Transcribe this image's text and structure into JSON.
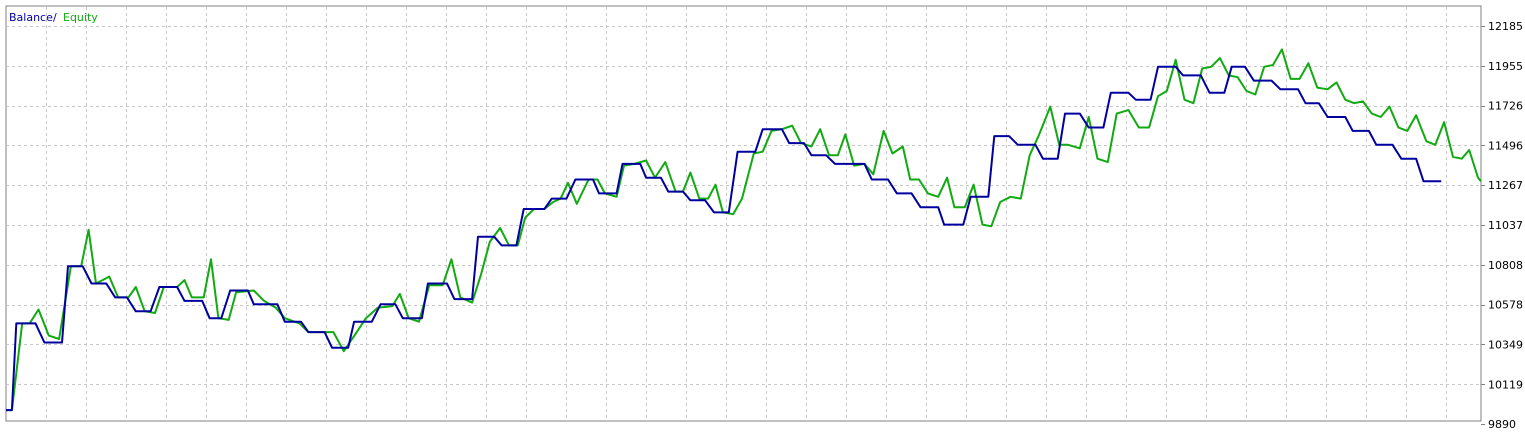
{
  "chart_data": {
    "type": "line",
    "legend": {
      "placement": "top-left",
      "separator": "/"
    },
    "series": [
      {
        "name": "Balance",
        "color": "#0000a0"
      },
      {
        "name": "Equity",
        "color": "#11aa11"
      }
    ],
    "y_ticks": [
      "12185",
      "11955",
      "11726",
      "11496",
      "11267",
      "11037",
      "10808",
      "10578",
      "10349",
      "10119",
      "9890"
    ],
    "ylim": [
      9890,
      12185
    ],
    "x_range": [
      0,
      100
    ],
    "grid": true,
    "balance_points": [
      [
        0.0,
        9970
      ],
      [
        0.4,
        9970
      ],
      [
        0.7,
        10470
      ],
      [
        2.0,
        10470
      ],
      [
        2.6,
        10360
      ],
      [
        3.8,
        10360
      ],
      [
        4.2,
        10800
      ],
      [
        5.2,
        10800
      ],
      [
        5.8,
        10700
      ],
      [
        6.8,
        10700
      ],
      [
        7.4,
        10620
      ],
      [
        8.2,
        10620
      ],
      [
        8.8,
        10540
      ],
      [
        9.8,
        10540
      ],
      [
        10.4,
        10680
      ],
      [
        11.6,
        10680
      ],
      [
        12.1,
        10600
      ],
      [
        13.3,
        10600
      ],
      [
        13.8,
        10500
      ],
      [
        14.6,
        10500
      ],
      [
        15.2,
        10660
      ],
      [
        16.4,
        10660
      ],
      [
        16.8,
        10580
      ],
      [
        18.4,
        10580
      ],
      [
        18.9,
        10480
      ],
      [
        20.0,
        10480
      ],
      [
        20.5,
        10420
      ],
      [
        21.6,
        10420
      ],
      [
        22.1,
        10330
      ],
      [
        23.2,
        10330
      ],
      [
        23.6,
        10480
      ],
      [
        24.8,
        10480
      ],
      [
        25.4,
        10580
      ],
      [
        26.4,
        10580
      ],
      [
        26.9,
        10500
      ],
      [
        28.2,
        10500
      ],
      [
        28.6,
        10700
      ],
      [
        29.9,
        10700
      ],
      [
        30.4,
        10610
      ],
      [
        31.6,
        10610
      ],
      [
        32.0,
        10970
      ],
      [
        33.1,
        10970
      ],
      [
        33.6,
        10920
      ],
      [
        34.6,
        10920
      ],
      [
        35.1,
        11130
      ],
      [
        36.5,
        11130
      ],
      [
        37.0,
        11190
      ],
      [
        38.0,
        11190
      ],
      [
        38.6,
        11300
      ],
      [
        39.8,
        11300
      ],
      [
        40.2,
        11220
      ],
      [
        41.4,
        11220
      ],
      [
        41.8,
        11390
      ],
      [
        43.0,
        11390
      ],
      [
        43.4,
        11310
      ],
      [
        44.4,
        11310
      ],
      [
        44.9,
        11230
      ],
      [
        45.9,
        11230
      ],
      [
        46.4,
        11180
      ],
      [
        47.4,
        11180
      ],
      [
        48.0,
        11110
      ],
      [
        49.0,
        11110
      ],
      [
        49.6,
        11460
      ],
      [
        50.8,
        11460
      ],
      [
        51.3,
        11590
      ],
      [
        52.6,
        11590
      ],
      [
        53.1,
        11510
      ],
      [
        54.1,
        11510
      ],
      [
        54.6,
        11440
      ],
      [
        55.6,
        11440
      ],
      [
        56.2,
        11390
      ],
      [
        58.2,
        11390
      ],
      [
        58.7,
        11300
      ],
      [
        59.8,
        11300
      ],
      [
        60.4,
        11220
      ],
      [
        61.4,
        11220
      ],
      [
        62.0,
        11140
      ],
      [
        63.2,
        11140
      ],
      [
        63.6,
        11040
      ],
      [
        64.9,
        11040
      ],
      [
        65.4,
        11200
      ],
      [
        66.6,
        11200
      ],
      [
        67.0,
        11550
      ],
      [
        68.0,
        11550
      ],
      [
        68.6,
        11500
      ],
      [
        69.8,
        11500
      ],
      [
        70.3,
        11420
      ],
      [
        71.3,
        11420
      ],
      [
        71.8,
        11680
      ],
      [
        72.8,
        11680
      ],
      [
        73.4,
        11600
      ],
      [
        74.4,
        11600
      ],
      [
        74.9,
        11800
      ],
      [
        76.1,
        11800
      ],
      [
        76.6,
        11760
      ],
      [
        77.6,
        11760
      ],
      [
        78.1,
        11950
      ],
      [
        79.3,
        11950
      ],
      [
        79.8,
        11900
      ],
      [
        81.0,
        11900
      ],
      [
        81.6,
        11800
      ],
      [
        82.6,
        11800
      ],
      [
        83.1,
        11950
      ],
      [
        84.0,
        11950
      ],
      [
        84.6,
        11870
      ],
      [
        85.8,
        11870
      ],
      [
        86.4,
        11820
      ],
      [
        87.6,
        11820
      ],
      [
        88.1,
        11740
      ],
      [
        89.0,
        11740
      ],
      [
        89.6,
        11660
      ],
      [
        90.8,
        11660
      ],
      [
        91.3,
        11580
      ],
      [
        92.4,
        11580
      ],
      [
        92.9,
        11500
      ],
      [
        94.0,
        11500
      ],
      [
        94.6,
        11420
      ],
      [
        95.6,
        11420
      ],
      [
        96.1,
        11290
      ],
      [
        97.3,
        11290
      ]
    ],
    "equity_points": [
      [
        0.0,
        9970
      ],
      [
        0.4,
        9970
      ],
      [
        1.1,
        10470
      ],
      [
        1.6,
        10470
      ],
      [
        2.2,
        10550
      ],
      [
        2.9,
        10400
      ],
      [
        3.6,
        10380
      ],
      [
        4.4,
        10800
      ],
      [
        5.1,
        10800
      ],
      [
        5.6,
        11010
      ],
      [
        6.1,
        10700
      ],
      [
        7.0,
        10740
      ],
      [
        7.6,
        10620
      ],
      [
        8.3,
        10620
      ],
      [
        8.8,
        10680
      ],
      [
        9.4,
        10540
      ],
      [
        10.1,
        10530
      ],
      [
        10.7,
        10680
      ],
      [
        11.6,
        10680
      ],
      [
        12.1,
        10720
      ],
      [
        12.6,
        10620
      ],
      [
        13.4,
        10620
      ],
      [
        13.9,
        10840
      ],
      [
        14.4,
        10500
      ],
      [
        15.1,
        10490
      ],
      [
        15.6,
        10650
      ],
      [
        16.8,
        10660
      ],
      [
        17.5,
        10600
      ],
      [
        18.3,
        10560
      ],
      [
        18.9,
        10500
      ],
      [
        19.9,
        10470
      ],
      [
        20.5,
        10420
      ],
      [
        21.6,
        10420
      ],
      [
        22.2,
        10420
      ],
      [
        22.9,
        10310
      ],
      [
        23.7,
        10410
      ],
      [
        24.4,
        10500
      ],
      [
        25.2,
        10560
      ],
      [
        26.2,
        10570
      ],
      [
        26.7,
        10640
      ],
      [
        27.3,
        10500
      ],
      [
        28.0,
        10480
      ],
      [
        28.7,
        10690
      ],
      [
        29.6,
        10690
      ],
      [
        30.2,
        10840
      ],
      [
        30.8,
        10620
      ],
      [
        31.6,
        10590
      ],
      [
        32.2,
        10750
      ],
      [
        32.8,
        10940
      ],
      [
        33.5,
        11020
      ],
      [
        34.1,
        10920
      ],
      [
        34.7,
        10920
      ],
      [
        35.2,
        11080
      ],
      [
        35.8,
        11130
      ],
      [
        36.5,
        11130
      ],
      [
        37.1,
        11170
      ],
      [
        37.6,
        11190
      ],
      [
        38.1,
        11280
      ],
      [
        38.7,
        11160
      ],
      [
        39.5,
        11300
      ],
      [
        40.1,
        11300
      ],
      [
        40.6,
        11220
      ],
      [
        41.4,
        11200
      ],
      [
        41.9,
        11380
      ],
      [
        42.6,
        11390
      ],
      [
        43.4,
        11410
      ],
      [
        44.0,
        11310
      ],
      [
        44.7,
        11400
      ],
      [
        45.4,
        11230
      ],
      [
        45.9,
        11230
      ],
      [
        46.4,
        11340
      ],
      [
        47.0,
        11190
      ],
      [
        47.6,
        11190
      ],
      [
        48.1,
        11270
      ],
      [
        48.6,
        11110
      ],
      [
        49.3,
        11100
      ],
      [
        49.9,
        11190
      ],
      [
        50.7,
        11450
      ],
      [
        51.3,
        11460
      ],
      [
        51.9,
        11580
      ],
      [
        52.6,
        11590
      ],
      [
        53.3,
        11610
      ],
      [
        53.9,
        11510
      ],
      [
        54.6,
        11490
      ],
      [
        55.2,
        11590
      ],
      [
        55.8,
        11440
      ],
      [
        56.4,
        11440
      ],
      [
        56.9,
        11560
      ],
      [
        57.5,
        11380
      ],
      [
        58.2,
        11390
      ],
      [
        58.8,
        11330
      ],
      [
        59.5,
        11580
      ],
      [
        60.1,
        11450
      ],
      [
        60.8,
        11490
      ],
      [
        61.3,
        11300
      ],
      [
        61.9,
        11300
      ],
      [
        62.5,
        11220
      ],
      [
        63.2,
        11200
      ],
      [
        63.8,
        11310
      ],
      [
        64.3,
        11140
      ],
      [
        65.0,
        11140
      ],
      [
        65.6,
        11270
      ],
      [
        66.2,
        11040
      ],
      [
        66.8,
        11030
      ],
      [
        67.4,
        11170
      ],
      [
        68.1,
        11200
      ],
      [
        68.8,
        11190
      ],
      [
        69.4,
        11440
      ],
      [
        70.0,
        11550
      ],
      [
        70.8,
        11720
      ],
      [
        71.4,
        11500
      ],
      [
        72.0,
        11500
      ],
      [
        72.8,
        11480
      ],
      [
        73.4,
        11660
      ],
      [
        74.0,
        11420
      ],
      [
        74.7,
        11400
      ],
      [
        75.3,
        11680
      ],
      [
        76.1,
        11700
      ],
      [
        76.8,
        11600
      ],
      [
        77.5,
        11600
      ],
      [
        78.1,
        11780
      ],
      [
        78.7,
        11810
      ],
      [
        79.3,
        11990
      ],
      [
        79.9,
        11760
      ],
      [
        80.5,
        11740
      ],
      [
        81.1,
        11940
      ],
      [
        81.7,
        11950
      ],
      [
        82.3,
        12000
      ],
      [
        82.9,
        11900
      ],
      [
        83.5,
        11890
      ],
      [
        84.1,
        11810
      ],
      [
        84.7,
        11790
      ],
      [
        85.3,
        11950
      ],
      [
        85.9,
        11960
      ],
      [
        86.5,
        12050
      ],
      [
        87.1,
        11880
      ],
      [
        87.7,
        11880
      ],
      [
        88.3,
        11970
      ],
      [
        88.9,
        11830
      ],
      [
        89.6,
        11820
      ],
      [
        90.2,
        11860
      ],
      [
        90.8,
        11760
      ],
      [
        91.4,
        11740
      ],
      [
        92.0,
        11750
      ],
      [
        92.6,
        11680
      ],
      [
        93.2,
        11660
      ],
      [
        93.8,
        11720
      ],
      [
        94.4,
        11600
      ],
      [
        95.0,
        11580
      ],
      [
        95.6,
        11670
      ],
      [
        96.3,
        11520
      ],
      [
        96.9,
        11500
      ],
      [
        97.5,
        11630
      ],
      [
        98.1,
        11430
      ],
      [
        98.7,
        11420
      ],
      [
        99.2,
        11470
      ],
      [
        99.8,
        11310
      ],
      [
        100.0,
        11290
      ]
    ]
  }
}
